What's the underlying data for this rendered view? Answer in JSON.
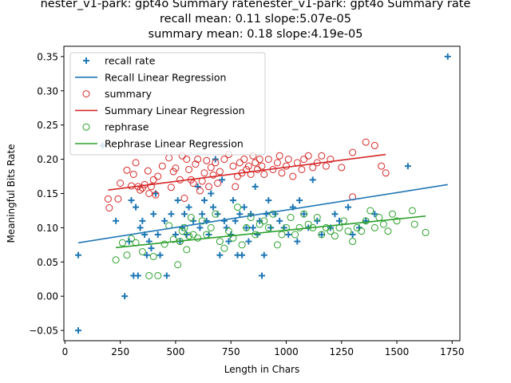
{
  "chart_data": {
    "type": "scatter",
    "title_lines": [
      "nester_v1-park: gpt4o Summary ratenester_v1-park: gpt4o Summary rate",
      "recall mean: 0.11 slope:5.07e-05",
      "summary mean: 0.18 slope:4.19e-05"
    ],
    "xlabel": "Length in Chars",
    "ylabel": "Meaningful Bits Rate",
    "xlim": [
      -5,
      1785
    ],
    "ylim": [
      -0.065,
      0.365
    ],
    "xticks": [
      0,
      250,
      500,
      750,
      1000,
      1250,
      1500,
      1750
    ],
    "yticks": [
      -0.05,
      0.0,
      0.05,
      0.1,
      0.15,
      0.2,
      0.25,
      0.3,
      0.35
    ],
    "ytick_labels": [
      "−0.05",
      "0.00",
      "0.05",
      "0.10",
      "0.15",
      "0.20",
      "0.25",
      "0.30",
      "0.35"
    ],
    "grid": false,
    "legend_position": "upper-left",
    "legend": [
      {
        "label": "recall rate",
        "kind": "plus",
        "color": "#1f77b4"
      },
      {
        "label": "Recall Linear Regression",
        "kind": "line",
        "color": "#1f77b4"
      },
      {
        "label": "summary",
        "kind": "circle",
        "color": "#d62728"
      },
      {
        "label": "Summary Linear Regression",
        "kind": "line",
        "color": "#d62728"
      },
      {
        "label": "rephrase",
        "kind": "circle",
        "color": "#2ca02c"
      },
      {
        "label": "Rephrase Linear Regression",
        "kind": "line",
        "color": "#2ca02c"
      }
    ],
    "series": [
      {
        "name": "recall rate",
        "marker": "plus",
        "color": "#1f77b4",
        "points": [
          [
            60,
            -0.05
          ],
          [
            60,
            0.06
          ],
          [
            170,
            0.22
          ],
          [
            230,
            0.11
          ],
          [
            270,
            0.0
          ],
          [
            290,
            0.08
          ],
          [
            300,
            0.14
          ],
          [
            310,
            0.03
          ],
          [
            320,
            0.13
          ],
          [
            330,
            0.03
          ],
          [
            340,
            0.1
          ],
          [
            350,
            0.11
          ],
          [
            360,
            0.09
          ],
          [
            370,
            0.06
          ],
          [
            380,
            0.08
          ],
          [
            390,
            0.07
          ],
          [
            400,
            0.12
          ],
          [
            410,
            0.15
          ],
          [
            420,
            0.09
          ],
          [
            430,
            0.06
          ],
          [
            450,
            0.11
          ],
          [
            460,
            0.03
          ],
          [
            480,
            0.12
          ],
          [
            500,
            0.09
          ],
          [
            510,
            0.14
          ],
          [
            520,
            0.08
          ],
          [
            530,
            0.1
          ],
          [
            540,
            0.12
          ],
          [
            550,
            0.09
          ],
          [
            560,
            0.13
          ],
          [
            580,
            0.11
          ],
          [
            600,
            0.16
          ],
          [
            610,
            0.1
          ],
          [
            620,
            0.12
          ],
          [
            630,
            0.14
          ],
          [
            640,
            0.11
          ],
          [
            650,
            0.09
          ],
          [
            660,
            0.15
          ],
          [
            670,
            0.13
          ],
          [
            680,
            0.2
          ],
          [
            690,
            0.12
          ],
          [
            700,
            0.06
          ],
          [
            710,
            0.17
          ],
          [
            720,
            0.11
          ],
          [
            730,
            0.1
          ],
          [
            740,
            0.08
          ],
          [
            750,
            0.09
          ],
          [
            760,
            0.14
          ],
          [
            770,
            0.11
          ],
          [
            780,
            0.06
          ],
          [
            790,
            0.12
          ],
          [
            800,
            0.06
          ],
          [
            810,
            0.13
          ],
          [
            820,
            0.1
          ],
          [
            830,
            0.08
          ],
          [
            840,
            0.12
          ],
          [
            850,
            0.1
          ],
          [
            860,
            0.16
          ],
          [
            870,
            0.09
          ],
          [
            880,
            0.11
          ],
          [
            890,
            0.03
          ],
          [
            900,
            0.06
          ],
          [
            910,
            0.12
          ],
          [
            920,
            0.14
          ],
          [
            930,
            0.1
          ],
          [
            950,
            0.12
          ],
          [
            970,
            0.11
          ],
          [
            990,
            0.1
          ],
          [
            1010,
            0.09
          ],
          [
            1030,
            0.13
          ],
          [
            1050,
            0.08
          ],
          [
            1060,
            0.14
          ],
          [
            1080,
            0.12
          ],
          [
            1100,
            0.1
          ],
          [
            1120,
            0.17
          ],
          [
            1140,
            0.11
          ],
          [
            1160,
            0.09
          ],
          [
            1200,
            0.1
          ],
          [
            1220,
            0.12
          ],
          [
            1240,
            0.11
          ],
          [
            1280,
            0.13
          ],
          [
            1300,
            0.09
          ],
          [
            1330,
            0.1
          ],
          [
            1360,
            0.11
          ],
          [
            1400,
            0.12
          ],
          [
            1550,
            0.19
          ],
          [
            1730,
            0.35
          ]
        ]
      },
      {
        "name": "summary",
        "marker": "circle",
        "color": "#d62728",
        "points": [
          [
            195,
            0.142
          ],
          [
            200,
            0.129
          ],
          [
            240,
            0.142
          ],
          [
            250,
            0.165
          ],
          [
            280,
            0.184
          ],
          [
            300,
            0.161
          ],
          [
            310,
            0.178
          ],
          [
            320,
            0.195
          ],
          [
            330,
            0.16
          ],
          [
            340,
            0.155
          ],
          [
            350,
            0.158
          ],
          [
            360,
            0.163
          ],
          [
            375,
            0.183
          ],
          [
            380,
            0.15
          ],
          [
            390,
            0.16
          ],
          [
            400,
            0.17
          ],
          [
            410,
            0.148
          ],
          [
            420,
            0.175
          ],
          [
            440,
            0.19
          ],
          [
            470,
            0.202
          ],
          [
            480,
            0.159
          ],
          [
            490,
            0.182
          ],
          [
            500,
            0.187
          ],
          [
            520,
            0.17
          ],
          [
            530,
            0.205
          ],
          [
            540,
            0.143
          ],
          [
            550,
            0.2
          ],
          [
            560,
            0.185
          ],
          [
            570,
            0.17
          ],
          [
            580,
            0.165
          ],
          [
            590,
            0.193
          ],
          [
            600,
            0.2
          ],
          [
            610,
            0.154
          ],
          [
            620,
            0.168
          ],
          [
            630,
            0.18
          ],
          [
            640,
            0.198
          ],
          [
            650,
            0.16
          ],
          [
            660,
            0.188
          ],
          [
            670,
            0.177
          ],
          [
            680,
            0.195
          ],
          [
            690,
            0.165
          ],
          [
            700,
            0.182
          ],
          [
            720,
            0.2
          ],
          [
            740,
            0.207
          ],
          [
            760,
            0.19
          ],
          [
            770,
            0.16
          ],
          [
            780,
            0.175
          ],
          [
            790,
            0.195
          ],
          [
            800,
            0.18
          ],
          [
            810,
            0.2
          ],
          [
            820,
            0.185
          ],
          [
            830,
            0.19
          ],
          [
            840,
            0.178
          ],
          [
            850,
            0.205
          ],
          [
            860,
            0.195
          ],
          [
            870,
            0.185
          ],
          [
            880,
            0.2
          ],
          [
            890,
            0.19
          ],
          [
            900,
            0.178
          ],
          [
            920,
            0.2
          ],
          [
            940,
            0.185
          ],
          [
            960,
            0.195
          ],
          [
            970,
            0.205
          ],
          [
            980,
            0.18
          ],
          [
            1000,
            0.19
          ],
          [
            1010,
            0.2
          ],
          [
            1030,
            0.175
          ],
          [
            1050,
            0.195
          ],
          [
            1070,
            0.185
          ],
          [
            1080,
            0.2
          ],
          [
            1100,
            0.205
          ],
          [
            1120,
            0.188
          ],
          [
            1140,
            0.195
          ],
          [
            1160,
            0.205
          ],
          [
            1180,
            0.19
          ],
          [
            1200,
            0.2
          ],
          [
            1250,
            0.188
          ],
          [
            1300,
            0.21
          ],
          [
            1360,
            0.225
          ],
          [
            1400,
            0.22
          ],
          [
            1430,
            0.19
          ],
          [
            1450,
            0.18
          ],
          [
            1300,
            0.145
          ]
        ]
      },
      {
        "name": "rephrase",
        "marker": "circle",
        "color": "#2ca02c",
        "points": [
          [
            230,
            0.053
          ],
          [
            260,
            0.078
          ],
          [
            280,
            0.06
          ],
          [
            300,
            0.084
          ],
          [
            320,
            0.078
          ],
          [
            350,
            0.065
          ],
          [
            380,
            0.03
          ],
          [
            400,
            0.058
          ],
          [
            420,
            0.03
          ],
          [
            450,
            0.076
          ],
          [
            470,
            0.103
          ],
          [
            490,
            0.083
          ],
          [
            510,
            0.046
          ],
          [
            520,
            0.08
          ],
          [
            530,
            0.095
          ],
          [
            540,
            0.1
          ],
          [
            550,
            0.068
          ],
          [
            560,
            0.088
          ],
          [
            570,
            0.115
          ],
          [
            580,
            0.09
          ],
          [
            600,
            0.085
          ],
          [
            620,
            0.11
          ],
          [
            640,
            0.09
          ],
          [
            660,
            0.1
          ],
          [
            680,
            0.12
          ],
          [
            700,
            0.08
          ],
          [
            720,
            0.07
          ],
          [
            740,
            0.095
          ],
          [
            760,
            0.085
          ],
          [
            780,
            0.13
          ],
          [
            800,
            0.075
          ],
          [
            820,
            0.1
          ],
          [
            840,
            0.115
          ],
          [
            860,
            0.09
          ],
          [
            880,
            0.105
          ],
          [
            900,
            0.11
          ],
          [
            920,
            0.1
          ],
          [
            940,
            0.12
          ],
          [
            960,
            0.075
          ],
          [
            980,
            0.09
          ],
          [
            1000,
            0.1
          ],
          [
            1020,
            0.115
          ],
          [
            1040,
            0.09
          ],
          [
            1060,
            0.1
          ],
          [
            1080,
            0.12
          ],
          [
            1100,
            0.105
          ],
          [
            1120,
            0.1
          ],
          [
            1140,
            0.115
          ],
          [
            1160,
            0.09
          ],
          [
            1180,
            0.1
          ],
          [
            1200,
            0.095
          ],
          [
            1220,
            0.088
          ],
          [
            1240,
            0.1
          ],
          [
            1260,
            0.11
          ],
          [
            1280,
            0.095
          ],
          [
            1300,
            0.08
          ],
          [
            1320,
            0.1
          ],
          [
            1340,
            0.095
          ],
          [
            1360,
            0.11
          ],
          [
            1380,
            0.125
          ],
          [
            1400,
            0.1
          ],
          [
            1420,
            0.115
          ],
          [
            1440,
            0.105
          ],
          [
            1460,
            0.095
          ],
          [
            1480,
            0.12
          ],
          [
            1500,
            0.11
          ],
          [
            1570,
            0.125
          ],
          [
            1580,
            0.105
          ],
          [
            1630,
            0.093
          ]
        ]
      }
    ],
    "regressions": [
      {
        "name": "Recall Linear Regression",
        "color": "#1f77b4",
        "x": [
          60,
          1730
        ],
        "y": [
          0.078,
          0.163
        ]
      },
      {
        "name": "Summary Linear Regression",
        "color": "#d62728",
        "x": [
          195,
          1450
        ],
        "y": [
          0.155,
          0.207
        ]
      },
      {
        "name": "Rephrase Linear Regression",
        "color": "#2ca02c",
        "x": [
          230,
          1630
        ],
        "y": [
          0.071,
          0.117
        ]
      }
    ]
  }
}
